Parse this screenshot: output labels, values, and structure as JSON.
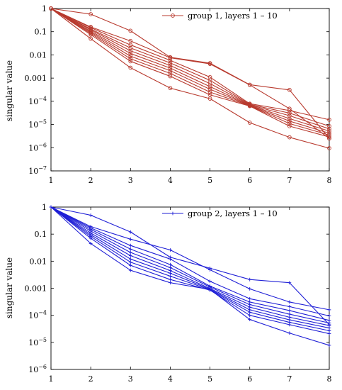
{
  "chart_data": [
    {
      "type": "line",
      "title": "",
      "xlabel": "",
      "ylabel": "singular value",
      "yscale": "log",
      "xlim": [
        1,
        8
      ],
      "ylim": [
        1e-07,
        1
      ],
      "x": [
        1,
        2,
        3,
        4,
        5,
        6,
        7,
        8
      ],
      "xticks": [
        "1",
        "2",
        "3",
        "4",
        "5",
        "6",
        "7",
        "8"
      ],
      "yticks": [
        {
          "value": 1,
          "label": "1",
          "exp": ""
        },
        {
          "value": 0.1,
          "label": "0.1",
          "exp": ""
        },
        {
          "value": 0.01,
          "label": "0.01",
          "exp": ""
        },
        {
          "value": 0.001,
          "label": "0.001",
          "exp": ""
        },
        {
          "value": 0.0001,
          "label": "10",
          "exp": "−4"
        },
        {
          "value": 1e-05,
          "label": "10",
          "exp": "−5"
        },
        {
          "value": 1e-06,
          "label": "10",
          "exp": "−6"
        },
        {
          "value": 1e-07,
          "label": "10",
          "exp": "−7"
        }
      ],
      "color": "#b83a2e",
      "marker": "circle",
      "legend": {
        "label": "group 1, layers 1 – 10",
        "position": "top-right"
      },
      "series": [
        {
          "values": [
            1,
            0.57,
            0.11,
            0.0079,
            0.0044,
            0.00052,
            0.00031,
            2.5e-06
          ]
        },
        {
          "values": [
            1,
            0.16,
            0.04,
            0.0075,
            0.0041,
            0.00051,
            4.8e-05,
            2.5e-06
          ]
        },
        {
          "values": [
            1,
            0.15,
            0.027,
            0.0058,
            0.0011,
            7.9e-05,
            4e-05,
            1.6e-05
          ]
        },
        {
          "values": [
            1,
            0.13,
            0.02,
            0.0045,
            0.0008,
            7.4e-05,
            3.1e-05,
            8.5e-06
          ]
        },
        {
          "values": [
            1,
            0.12,
            0.015,
            0.0035,
            0.00058,
            7.1e-05,
            2.4e-05,
            6.5e-06
          ]
        },
        {
          "values": [
            1,
            0.105,
            0.0115,
            0.0027,
            0.00043,
            6.8e-05,
            1.8e-05,
            5.2e-06
          ]
        },
        {
          "values": [
            1,
            0.095,
            0.0088,
            0.0021,
            0.00033,
            6.6e-05,
            1.4e-05,
            4.2e-06
          ]
        },
        {
          "values": [
            1,
            0.085,
            0.0068,
            0.0016,
            0.00025,
            6.4e-05,
            1.1e-05,
            3.5e-06
          ]
        },
        {
          "values": [
            1,
            0.05,
            0.0028,
            0.00037,
            0.00013,
            1.2e-05,
            2.8e-06,
            9.5e-07
          ]
        },
        {
          "values": [
            1,
            0.075,
            0.0053,
            0.0012,
            0.00019,
            6.2e-05,
            8.5e-06,
            2.9e-06
          ]
        }
      ]
    },
    {
      "type": "line",
      "title": "",
      "xlabel": "",
      "ylabel": "singular value",
      "yscale": "log",
      "xlim": [
        1,
        8
      ],
      "ylim": [
        1e-06,
        1
      ],
      "x": [
        1,
        2,
        3,
        4,
        5,
        6,
        7,
        8
      ],
      "xticks": [
        "1",
        "2",
        "3",
        "4",
        "5",
        "6",
        "7",
        "8"
      ],
      "yticks": [
        {
          "value": 1,
          "label": "1",
          "exp": ""
        },
        {
          "value": 0.1,
          "label": "0.1",
          "exp": ""
        },
        {
          "value": 0.01,
          "label": "0.01",
          "exp": ""
        },
        {
          "value": 0.001,
          "label": "0.001",
          "exp": ""
        },
        {
          "value": 0.0001,
          "label": "10",
          "exp": "−4"
        },
        {
          "value": 1e-05,
          "label": "10",
          "exp": "−5"
        },
        {
          "value": 1e-06,
          "label": "10",
          "exp": "−6"
        }
      ],
      "color": "#1f1fd6",
      "marker": "plus",
      "legend": {
        "label": "group 2, layers 1 – 10",
        "position": "top-right"
      },
      "series": [
        {
          "values": [
            1,
            0.5,
            0.12,
            0.014,
            0.0055,
            0.0021,
            0.0016,
            4.5e-05
          ]
        },
        {
          "values": [
            1,
            0.19,
            0.065,
            0.026,
            0.0048,
            0.00095,
            0.00031,
            0.00016
          ]
        },
        {
          "values": [
            1,
            0.17,
            0.038,
            0.012,
            0.0018,
            0.00041,
            0.00021,
            9.5e-05
          ]
        },
        {
          "values": [
            1,
            0.15,
            0.028,
            0.0075,
            0.0012,
            0.00031,
            0.00015,
            6.5e-05
          ]
        },
        {
          "values": [
            1,
            0.13,
            0.021,
            0.0058,
            0.0011,
            0.00025,
            0.00011,
            5.2e-05
          ]
        },
        {
          "values": [
            1,
            0.11,
            0.016,
            0.0045,
            0.00098,
            0.0002,
            8.5e-05,
            4.2e-05
          ]
        },
        {
          "values": [
            1,
            0.095,
            0.012,
            0.0036,
            0.00092,
            0.00016,
            6.8e-05,
            3.4e-05
          ]
        },
        {
          "values": [
            1,
            0.082,
            0.0092,
            0.0028,
            0.00088,
            0.00013,
            5.5e-05,
            2.7e-05
          ]
        },
        {
          "values": [
            1,
            0.07,
            0.007,
            0.0021,
            0.00085,
            0.0001,
            4.5e-05,
            2.1e-05
          ]
        },
        {
          "values": [
            1,
            0.045,
            0.0046,
            0.0016,
            0.0009,
            7e-05,
            2.2e-05,
            7.8e-06
          ]
        }
      ]
    }
  ]
}
